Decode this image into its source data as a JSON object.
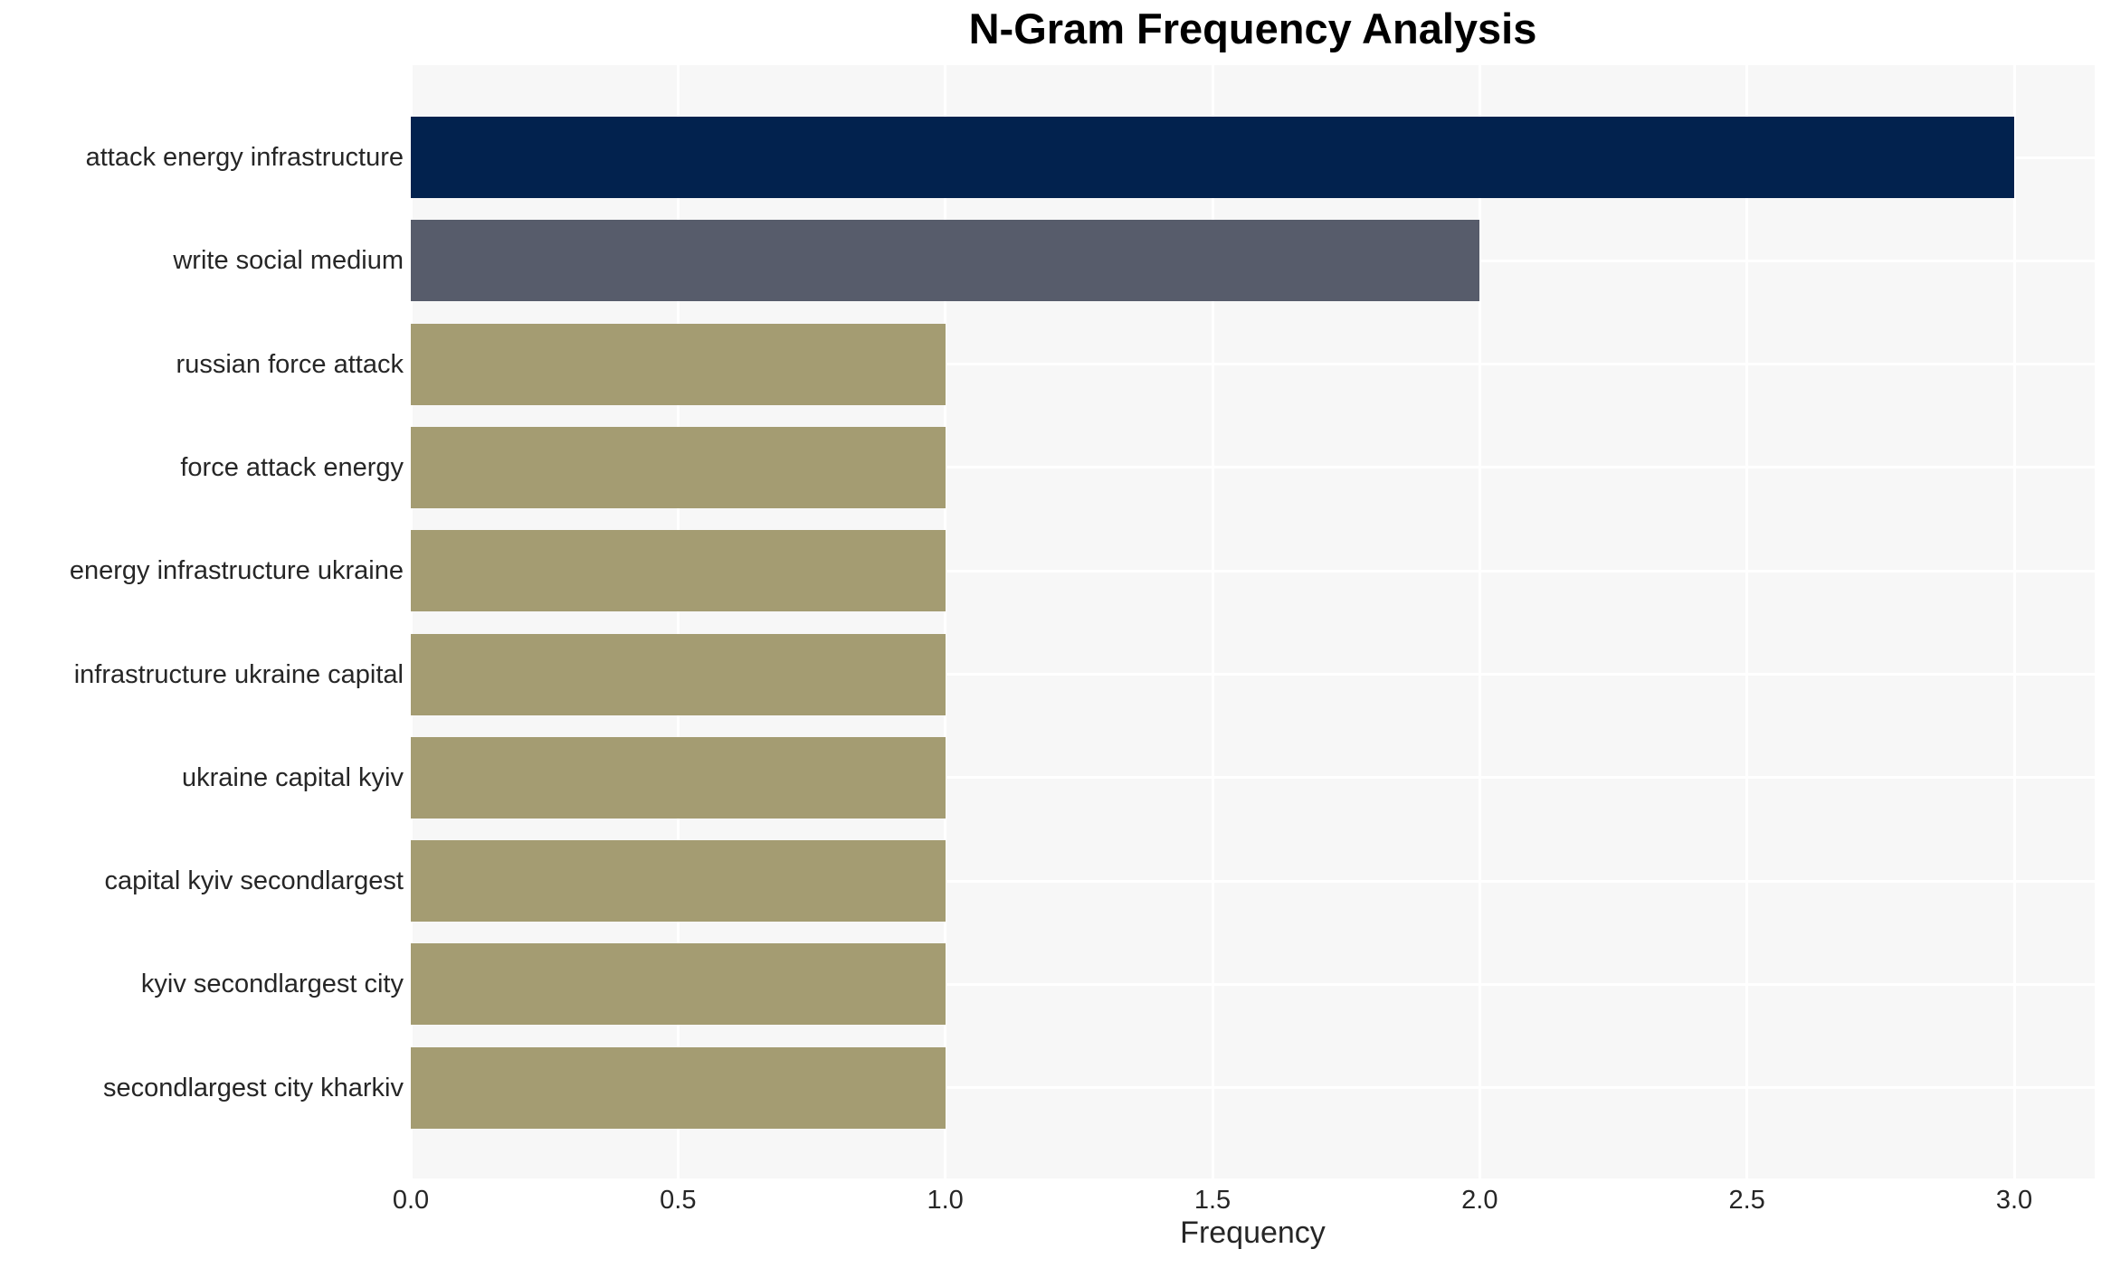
{
  "chart_data": {
    "type": "bar",
    "orientation": "horizontal",
    "title": "N-Gram Frequency Analysis",
    "xlabel": "Frequency",
    "ylabel": "",
    "categories": [
      "attack energy infrastructure",
      "write social medium",
      "russian force attack",
      "force attack energy",
      "energy infrastructure ukraine",
      "infrastructure ukraine capital",
      "ukraine capital kyiv",
      "capital kyiv secondlargest",
      "kyiv secondlargest city",
      "secondlargest city kharkiv"
    ],
    "values": [
      3,
      2,
      1,
      1,
      1,
      1,
      1,
      1,
      1,
      1
    ],
    "bar_colors": [
      "#02224e",
      "#575c6b",
      "#a49c72",
      "#a49c72",
      "#a49c72",
      "#a49c72",
      "#a49c72",
      "#a49c72",
      "#a49c72",
      "#a49c72"
    ],
    "xticks": [
      0,
      0.5,
      1,
      1.5,
      2,
      2.5,
      3
    ],
    "xtick_labels": [
      "0.0",
      "0.5",
      "1.0",
      "1.5",
      "2.0",
      "2.5",
      "3.0"
    ],
    "xlim": [
      0,
      3.15
    ],
    "grid": true,
    "legend": "none",
    "plot_background": "#f7f7f7",
    "grid_color": "#ffffff",
    "text_color": "#262626",
    "title_color": "#000000"
  }
}
